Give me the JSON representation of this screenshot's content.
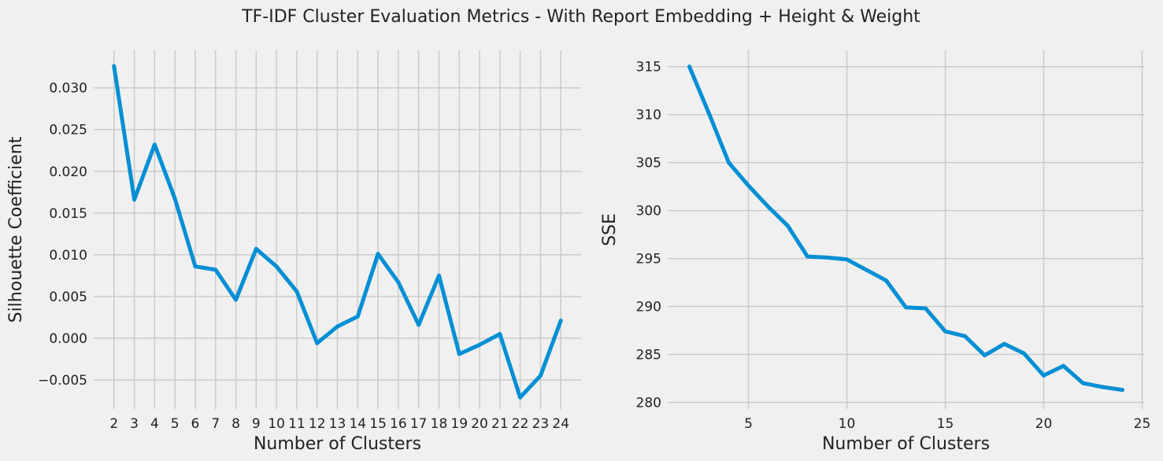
{
  "suptitle": "TF-IDF Cluster Evaluation Metrics - With Report Embedding + Height & Weight",
  "colors": {
    "background": "#f0f0f0",
    "grid": "#cbcbcb",
    "line": "#008fd5"
  },
  "chart_data": [
    {
      "type": "line",
      "xlabel": "Number of Clusters",
      "ylabel": "Silhouette Coefficient",
      "x": [
        2,
        3,
        4,
        5,
        6,
        7,
        8,
        9,
        10,
        11,
        12,
        13,
        14,
        15,
        16,
        17,
        18,
        19,
        20,
        21,
        22,
        23,
        24
      ],
      "values": [
        0.0326,
        0.0166,
        0.0232,
        0.0167,
        0.0086,
        0.0082,
        0.0046,
        0.0107,
        0.0086,
        0.0056,
        -0.0006,
        0.0014,
        0.0026,
        0.0101,
        0.0067,
        0.0016,
        0.0075,
        -0.0019,
        -0.0008,
        0.0005,
        -0.0071,
        -0.0045,
        0.0021
      ],
      "xticks": [
        2,
        3,
        4,
        5,
        6,
        7,
        8,
        9,
        10,
        11,
        12,
        13,
        14,
        15,
        16,
        17,
        18,
        19,
        20,
        21,
        22,
        23,
        24
      ],
      "yticks": [
        -0.005,
        0.0,
        0.005,
        0.01,
        0.015,
        0.02,
        0.025,
        0.03
      ],
      "ytick_labels": [
        "−0.005",
        "0.000",
        "0.005",
        "0.010",
        "0.015",
        "0.020",
        "0.025",
        "0.030"
      ],
      "xlim": [
        1.0,
        25.0
      ],
      "ylim": [
        -0.0085,
        0.0345
      ],
      "grid": true
    },
    {
      "type": "line",
      "xlabel": "Number of Clusters",
      "ylabel": "SSE",
      "x": [
        2,
        3,
        4,
        5,
        6,
        7,
        8,
        9,
        10,
        11,
        12,
        13,
        14,
        15,
        16,
        17,
        18,
        19,
        20,
        21,
        22,
        23,
        24
      ],
      "values": [
        315.0,
        310.1,
        305.0,
        302.6,
        300.4,
        298.4,
        295.2,
        295.1,
        294.9,
        293.8,
        292.7,
        289.9,
        289.8,
        287.4,
        286.9,
        284.9,
        286.1,
        285.1,
        282.8,
        283.8,
        282.0,
        281.6,
        281.3
      ],
      "xticks": [
        5,
        10,
        15,
        20,
        25
      ],
      "yticks": [
        280,
        285,
        290,
        295,
        300,
        305,
        310,
        315
      ],
      "ytick_labels": [
        "280",
        "285",
        "290",
        "295",
        "300",
        "305",
        "310",
        "315"
      ],
      "xlim": [
        0.9,
        25.1
      ],
      "ylim": [
        279.3,
        316.7
      ],
      "grid": true
    }
  ]
}
